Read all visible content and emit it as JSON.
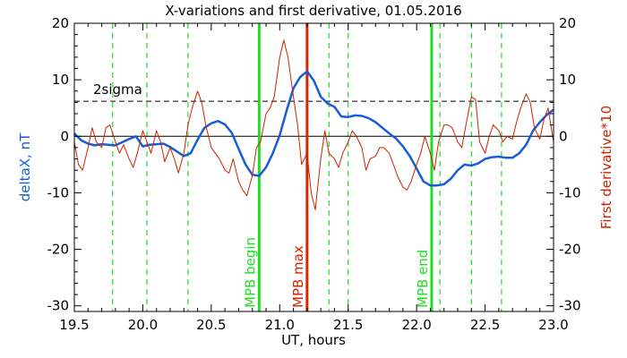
{
  "chart_data": {
    "type": "line",
    "title": "X-variations and first derivative, 01.05.2016",
    "xlabel": "UT, hours",
    "ylabel_left": "deltaX, nT",
    "ylabel_right": "First derivative*10",
    "xlim": [
      19.5,
      23.0
    ],
    "ylim": [
      -31,
      20
    ],
    "xticks": [
      "19.5",
      "20.0",
      "20.5",
      "21.0",
      "21.5",
      "22.0",
      "22.5",
      "23.0"
    ],
    "xtick_values": [
      19.5,
      20.0,
      20.5,
      21.0,
      21.5,
      22.0,
      22.5,
      23.0
    ],
    "yticks": [
      "-30",
      "-20",
      "-10",
      "0",
      "10",
      "20"
    ],
    "ytick_values": [
      -30,
      -20,
      -10,
      0,
      10,
      20
    ],
    "colors": {
      "deltaX": "#1a5cd6",
      "derivative": "#cc2200",
      "event": "#22dd22",
      "peak": "#dd2200"
    },
    "threshold": {
      "label": "2sigma",
      "value": 6.2
    },
    "zero_line": 0,
    "dashed_verticals": [
      19.78,
      20.03,
      20.33,
      21.36,
      21.5,
      22.17,
      22.4,
      22.62
    ],
    "markers": [
      {
        "label": "MPB begin",
        "x": 20.85,
        "color": "#22dd22"
      },
      {
        "label": "MPB max",
        "x": 21.2,
        "color": "#dd2200"
      },
      {
        "label": "MPB end",
        "x": 22.11,
        "color": "#22dd22"
      }
    ],
    "series": [
      {
        "key": "deltaX",
        "color": "#1a5cd6",
        "x": [
          19.5,
          19.55,
          19.6,
          19.65,
          19.7,
          19.8,
          19.9,
          19.95,
          20.0,
          20.05,
          20.1,
          20.15,
          20.2,
          20.25,
          20.3,
          20.35,
          20.4,
          20.45,
          20.5,
          20.55,
          20.6,
          20.65,
          20.7,
          20.75,
          20.8,
          20.85,
          20.9,
          20.95,
          21.0,
          21.05,
          21.1,
          21.15,
          21.2,
          21.25,
          21.3,
          21.35,
          21.4,
          21.45,
          21.5,
          21.55,
          21.6,
          21.65,
          21.7,
          21.75,
          21.8,
          21.85,
          21.9,
          21.95,
          22.0,
          22.05,
          22.1,
          22.15,
          22.2,
          22.25,
          22.3,
          22.35,
          22.4,
          22.45,
          22.5,
          22.55,
          22.6,
          22.65,
          22.7,
          22.75,
          22.8,
          22.85,
          22.9,
          22.95,
          23.0
        ],
        "y": [
          0.5,
          -0.7,
          -1.3,
          -1.6,
          -1.4,
          -1.6,
          -0.5,
          0.0,
          -1.8,
          -1.5,
          -1.4,
          -1.3,
          -1.9,
          -2.7,
          -3.5,
          -3.0,
          -0.6,
          1.5,
          2.3,
          2.7,
          2.1,
          0.6,
          -2.2,
          -5.0,
          -6.8,
          -7.0,
          -5.5,
          -3.0,
          0.2,
          4.5,
          8.5,
          10.5,
          11.5,
          9.8,
          7.0,
          5.8,
          5.2,
          3.5,
          3.4,
          3.7,
          3.6,
          3.2,
          2.5,
          1.5,
          0.5,
          -0.4,
          -1.8,
          -3.5,
          -5.7,
          -8.0,
          -8.7,
          -8.7,
          -8.5,
          -7.5,
          -6.0,
          -5.0,
          -5.2,
          -4.8,
          -4.0,
          -3.7,
          -3.6,
          -3.8,
          -3.8,
          -3.0,
          -1.5,
          1.0,
          2.5,
          3.8,
          4.7
        ]
      },
      {
        "key": "derivative",
        "color": "#cc2200",
        "x": [
          19.5,
          19.53,
          19.56,
          19.6,
          19.63,
          19.66,
          19.7,
          19.73,
          19.76,
          19.8,
          19.83,
          19.86,
          19.9,
          19.93,
          19.96,
          20.0,
          20.03,
          20.06,
          20.1,
          20.13,
          20.16,
          20.2,
          20.23,
          20.26,
          20.3,
          20.33,
          20.36,
          20.4,
          20.43,
          20.46,
          20.5,
          20.53,
          20.56,
          20.6,
          20.63,
          20.66,
          20.7,
          20.73,
          20.76,
          20.8,
          20.83,
          20.86,
          20.9,
          20.93,
          20.96,
          21.0,
          21.03,
          21.06,
          21.1,
          21.13,
          21.16,
          21.2,
          21.23,
          21.26,
          21.3,
          21.33,
          21.36,
          21.4,
          21.43,
          21.46,
          21.5,
          21.53,
          21.56,
          21.6,
          21.63,
          21.66,
          21.7,
          21.73,
          21.76,
          21.8,
          21.83,
          21.86,
          21.9,
          21.93,
          21.96,
          22.0,
          22.03,
          22.06,
          22.1,
          22.13,
          22.16,
          22.2,
          22.23,
          22.26,
          22.3,
          22.33,
          22.36,
          22.4,
          22.43,
          22.46,
          22.5,
          22.53,
          22.56,
          22.6,
          22.63,
          22.66,
          22.7,
          22.73,
          22.76,
          22.8,
          22.83,
          22.86,
          22.9,
          22.93,
          22.96,
          23.0
        ],
        "y": [
          -1.0,
          -5.0,
          -6.0,
          -2.0,
          1.5,
          -1.0,
          -2.0,
          1.5,
          2.0,
          -1.0,
          -3.0,
          -1.5,
          -4.0,
          -5.5,
          -3.0,
          1.0,
          -1.0,
          -3.0,
          1.0,
          -1.0,
          -4.5,
          -2.0,
          -4.0,
          -6.5,
          -3.0,
          2.0,
          5.0,
          8.0,
          6.0,
          2.0,
          -2.0,
          -3.0,
          -4.0,
          -6.0,
          -6.5,
          -4.0,
          -8.0,
          -9.5,
          -10.5,
          -7.0,
          -2.0,
          -1.0,
          4.0,
          5.0,
          7.0,
          14.0,
          17.0,
          14.0,
          7.0,
          2.0,
          -5.0,
          -3.0,
          -10.0,
          -13.0,
          -4.0,
          1.0,
          -3.0,
          -4.0,
          -5.5,
          -3.0,
          -1.0,
          1.0,
          0.0,
          -2.0,
          -6.0,
          -4.0,
          -3.5,
          -2.0,
          -2.0,
          -3.0,
          -5.0,
          -7.0,
          -9.0,
          -9.5,
          -8.0,
          -5.0,
          -3.0,
          0.0,
          -3.0,
          -6.0,
          -1.0,
          2.0,
          2.0,
          1.5,
          -1.0,
          -2.0,
          2.0,
          7.0,
          6.5,
          -1.0,
          -3.0,
          0.0,
          2.0,
          1.0,
          -1.0,
          0.0,
          -0.5,
          2.5,
          5.0,
          7.5,
          6.0,
          1.5,
          -0.5,
          3.0,
          5.0,
          -1.0
        ]
      }
    ]
  }
}
